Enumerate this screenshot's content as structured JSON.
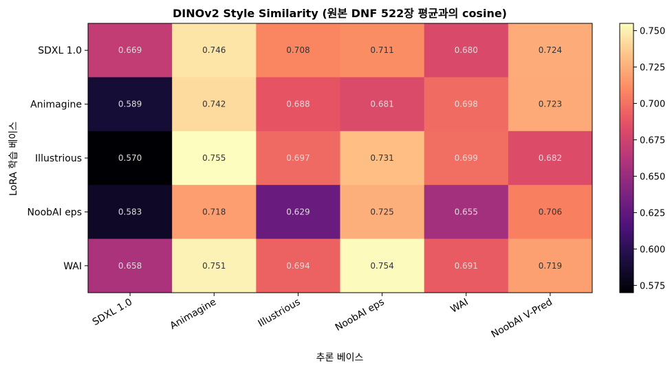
{
  "chart_data": {
    "type": "heatmap",
    "title": "DINOv2 Style Similarity (원본 DNF 522장 평균과의 cosine)",
    "xlabel": "추론 베이스",
    "ylabel": "LoRA 학습 베이스",
    "x_categories": [
      "SDXL 1.0",
      "Animagine",
      "Illustrious",
      "NoobAI eps",
      "WAI",
      "NoobAI V-Pred"
    ],
    "y_categories": [
      "SDXL 1.0",
      "Animagine",
      "Illustrious",
      "NoobAI eps",
      "WAI"
    ],
    "values": [
      [
        0.669,
        0.746,
        0.708,
        0.711,
        0.68,
        0.724
      ],
      [
        0.589,
        0.742,
        0.688,
        0.681,
        0.698,
        0.723
      ],
      [
        0.57,
        0.755,
        0.697,
        0.731,
        0.699,
        0.682
      ],
      [
        0.583,
        0.718,
        0.629,
        0.725,
        0.655,
        0.706
      ],
      [
        0.658,
        0.751,
        0.694,
        0.754,
        0.691,
        0.719
      ]
    ],
    "value_labels": [
      [
        "0.669",
        "0.746",
        "0.708",
        "0.711",
        "0.680",
        "0.724"
      ],
      [
        "0.589",
        "0.742",
        "0.688",
        "0.681",
        "0.698",
        "0.723"
      ],
      [
        "0.570",
        "0.755",
        "0.697",
        "0.731",
        "0.699",
        "0.682"
      ],
      [
        "0.583",
        "0.718",
        "0.629",
        "0.725",
        "0.655",
        "0.706"
      ],
      [
        "0.658",
        "0.751",
        "0.694",
        "0.754",
        "0.691",
        "0.719"
      ]
    ],
    "colormap": "magma",
    "vmin": 0.57,
    "vmax": 0.755,
    "colorbar_ticks": [
      "0.575",
      "0.600",
      "0.625",
      "0.650",
      "0.675",
      "0.700",
      "0.725",
      "0.750"
    ],
    "grid": false
  }
}
